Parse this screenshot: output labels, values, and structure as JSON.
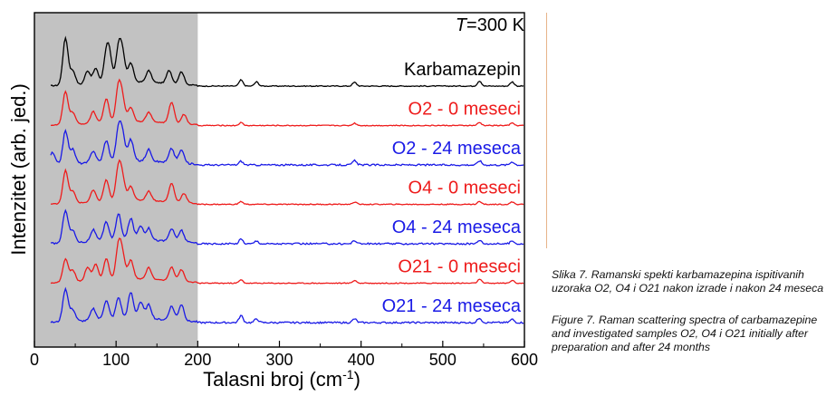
{
  "chart_data": {
    "type": "line",
    "xlabel": "Talasni broj (cm",
    "xlabel_sup": "-1",
    "xlabel_end": ")",
    "ylabel": "Intenzitet (arb. jed.)",
    "xlim": [
      0,
      600
    ],
    "xticks": [
      "0",
      "100",
      "200",
      "300",
      "400",
      "500",
      "600"
    ],
    "shaded_region": [
      0,
      200
    ],
    "annotation": {
      "italic": "T",
      "text": "=300 K"
    },
    "series": [
      {
        "name": "Karbamazepin",
        "color": "#000000",
        "offset": 7,
        "peaks": [
          [
            38,
            10
          ],
          [
            47,
            3
          ],
          [
            65,
            2.8
          ],
          [
            75,
            3.2
          ],
          [
            88,
            5.5
          ],
          [
            92,
            5
          ],
          [
            103,
            7
          ],
          [
            108,
            5.5
          ],
          [
            118,
            4
          ],
          [
            140,
            2.5
          ],
          [
            165,
            2.8
          ],
          [
            180,
            2.7
          ],
          [
            253,
            1.3
          ],
          [
            272,
            0.9
          ],
          [
            392,
            0.8
          ],
          [
            545,
            1.1
          ],
          [
            585,
            0.9
          ]
        ]
      },
      {
        "name": "O2 - 0 meseci",
        "color": "#ee1c1c",
        "offset": 6,
        "peaks": [
          [
            38,
            7
          ],
          [
            47,
            2.5
          ],
          [
            72,
            2.5
          ],
          [
            88,
            5
          ],
          [
            103,
            7.5
          ],
          [
            108,
            4
          ],
          [
            118,
            3
          ],
          [
            140,
            2
          ],
          [
            168,
            4.5
          ],
          [
            183,
            2
          ],
          [
            253,
            0.6
          ],
          [
            392,
            0.5
          ],
          [
            545,
            0.6
          ],
          [
            585,
            0.5
          ]
        ]
      },
      {
        "name": "O2 - 24 meseca",
        "color": "#1a1ae6",
        "offset": 5,
        "peaks": [
          [
            22,
            2.5
          ],
          [
            38,
            7
          ],
          [
            47,
            3
          ],
          [
            72,
            2.5
          ],
          [
            88,
            4.5
          ],
          [
            103,
            6.5
          ],
          [
            108,
            5
          ],
          [
            118,
            4.5
          ],
          [
            140,
            2.5
          ],
          [
            168,
            3
          ],
          [
            180,
            2.8
          ],
          [
            253,
            0.8
          ],
          [
            392,
            0.9
          ],
          [
            545,
            0.9
          ],
          [
            585,
            0.7
          ]
        ]
      },
      {
        "name": "O4 - 0 meseci",
        "color": "#ee1c1c",
        "offset": 4,
        "peaks": [
          [
            38,
            7
          ],
          [
            47,
            2.5
          ],
          [
            72,
            2.5
          ],
          [
            88,
            4.5
          ],
          [
            103,
            7
          ],
          [
            108,
            4
          ],
          [
            118,
            3
          ],
          [
            140,
            2
          ],
          [
            168,
            4
          ],
          [
            183,
            2
          ],
          [
            253,
            0.6
          ],
          [
            392,
            0.5
          ],
          [
            545,
            0.6
          ],
          [
            585,
            0.5
          ]
        ]
      },
      {
        "name": "O4 - 24 meseca",
        "color": "#1a1ae6",
        "offset": 3,
        "peaks": [
          [
            38,
            7
          ],
          [
            47,
            2.5
          ],
          [
            72,
            2.5
          ],
          [
            88,
            4
          ],
          [
            103,
            5.5
          ],
          [
            118,
            4.5
          ],
          [
            130,
            3
          ],
          [
            140,
            2.5
          ],
          [
            168,
            2.7
          ],
          [
            180,
            2.5
          ],
          [
            253,
            1
          ],
          [
            272,
            0.6
          ],
          [
            392,
            0.7
          ],
          [
            545,
            0.8
          ],
          [
            585,
            0.6
          ]
        ]
      },
      {
        "name": "O21 - 0 meseci",
        "color": "#ee1c1c",
        "offset": 2,
        "peaks": [
          [
            38,
            5
          ],
          [
            47,
            2.5
          ],
          [
            65,
            3
          ],
          [
            75,
            3.5
          ],
          [
            88,
            4.5
          ],
          [
            103,
            7
          ],
          [
            108,
            4.5
          ],
          [
            118,
            4
          ],
          [
            140,
            2.5
          ],
          [
            168,
            3
          ],
          [
            180,
            2.5
          ],
          [
            253,
            0.7
          ],
          [
            392,
            0.6
          ],
          [
            545,
            0.8
          ],
          [
            585,
            0.6
          ]
        ]
      },
      {
        "name": "O21 - 24 meseca",
        "color": "#1a1ae6",
        "offset": 1,
        "peaks": [
          [
            38,
            7
          ],
          [
            47,
            2.5
          ],
          [
            72,
            2.5
          ],
          [
            88,
            4
          ],
          [
            103,
            4.5
          ],
          [
            118,
            5.5
          ],
          [
            130,
            3.5
          ],
          [
            140,
            3
          ],
          [
            168,
            3
          ],
          [
            180,
            3.5
          ],
          [
            253,
            1.5
          ],
          [
            272,
            0.8
          ],
          [
            392,
            0.8
          ],
          [
            545,
            1
          ],
          [
            585,
            0.7
          ]
        ]
      }
    ]
  },
  "caption": {
    "serbian": "Slika 7. Ramanski spekti karbamazepina ispitivanih uzoraka O2, O4 i O21 nakon izrade i nakon 24 meseca",
    "english": "Figure 7. Raman scattering spectra of carbamazepine and investigated samples O2, O4 i O21 initially after preparation and after 24 months"
  }
}
